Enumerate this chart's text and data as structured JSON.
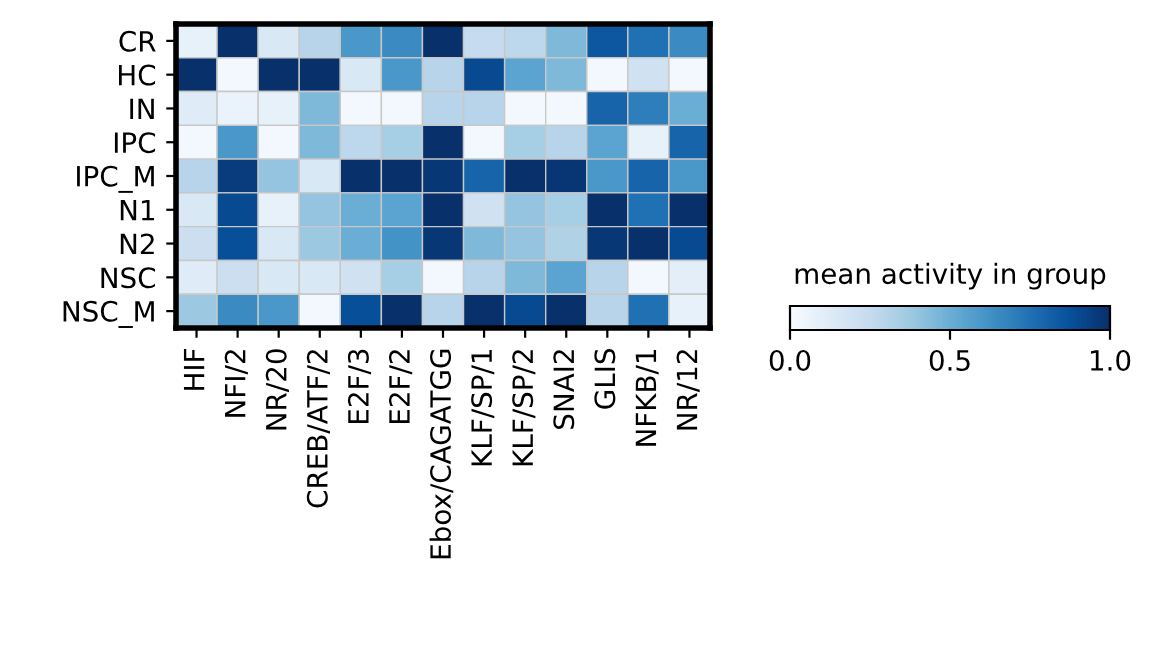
{
  "chart_data": {
    "type": "heatmap",
    "clabel": "mean activity in group",
    "clim": [
      0,
      1
    ],
    "cticks": [
      {
        "value": 0,
        "label": "0.0"
      },
      {
        "value": 0.5,
        "label": "0.5"
      },
      {
        "value": 1,
        "label": "1.0"
      }
    ],
    "categories": [
      "HIF",
      "NFI/2",
      "NR/20",
      "CREB/ATF/2",
      "E2F/3",
      "E2F/2",
      "Ebox/CAGATGG",
      "KLF/SP/1",
      "KLF/SP/2",
      "SNAI2",
      "GLIS",
      "NFKB/1",
      "NR/12"
    ],
    "y_categories": [
      "CR",
      "HC",
      "IN",
      "IPC",
      "IPC_M",
      "N1",
      "N2",
      "NSC",
      "NSC_M"
    ],
    "cells": [
      [
        0.08,
        1.0,
        0.15,
        0.3,
        0.6,
        0.65,
        1.0,
        0.25,
        0.28,
        0.45,
        0.85,
        0.75,
        0.65
      ],
      [
        1.0,
        0.02,
        1.0,
        1.0,
        0.15,
        0.6,
        0.3,
        0.9,
        0.55,
        0.45,
        0.02,
        0.2,
        0.02
      ],
      [
        0.12,
        0.07,
        0.08,
        0.45,
        0.02,
        0.02,
        0.3,
        0.3,
        0.02,
        0.02,
        0.8,
        0.7,
        0.5
      ],
      [
        0.02,
        0.6,
        0.02,
        0.45,
        0.28,
        0.35,
        1.0,
        0.02,
        0.35,
        0.3,
        0.55,
        0.08,
        0.8
      ],
      [
        0.3,
        0.95,
        0.4,
        0.15,
        1.0,
        1.0,
        0.97,
        0.8,
        1.0,
        0.98,
        0.6,
        0.8,
        0.6
      ],
      [
        0.15,
        0.9,
        0.08,
        0.4,
        0.5,
        0.55,
        1.0,
        0.2,
        0.4,
        0.35,
        1.0,
        0.75,
        1.0
      ],
      [
        0.22,
        0.88,
        0.15,
        0.38,
        0.5,
        0.62,
        0.97,
        0.45,
        0.4,
        0.32,
        0.97,
        1.0,
        0.9
      ],
      [
        0.12,
        0.22,
        0.15,
        0.15,
        0.2,
        0.35,
        0.02,
        0.3,
        0.45,
        0.55,
        0.3,
        0.02,
        0.1
      ],
      [
        0.38,
        0.65,
        0.6,
        0.02,
        0.88,
        1.0,
        0.3,
        1.0,
        0.9,
        1.0,
        0.3,
        0.75,
        0.08
      ]
    ]
  }
}
